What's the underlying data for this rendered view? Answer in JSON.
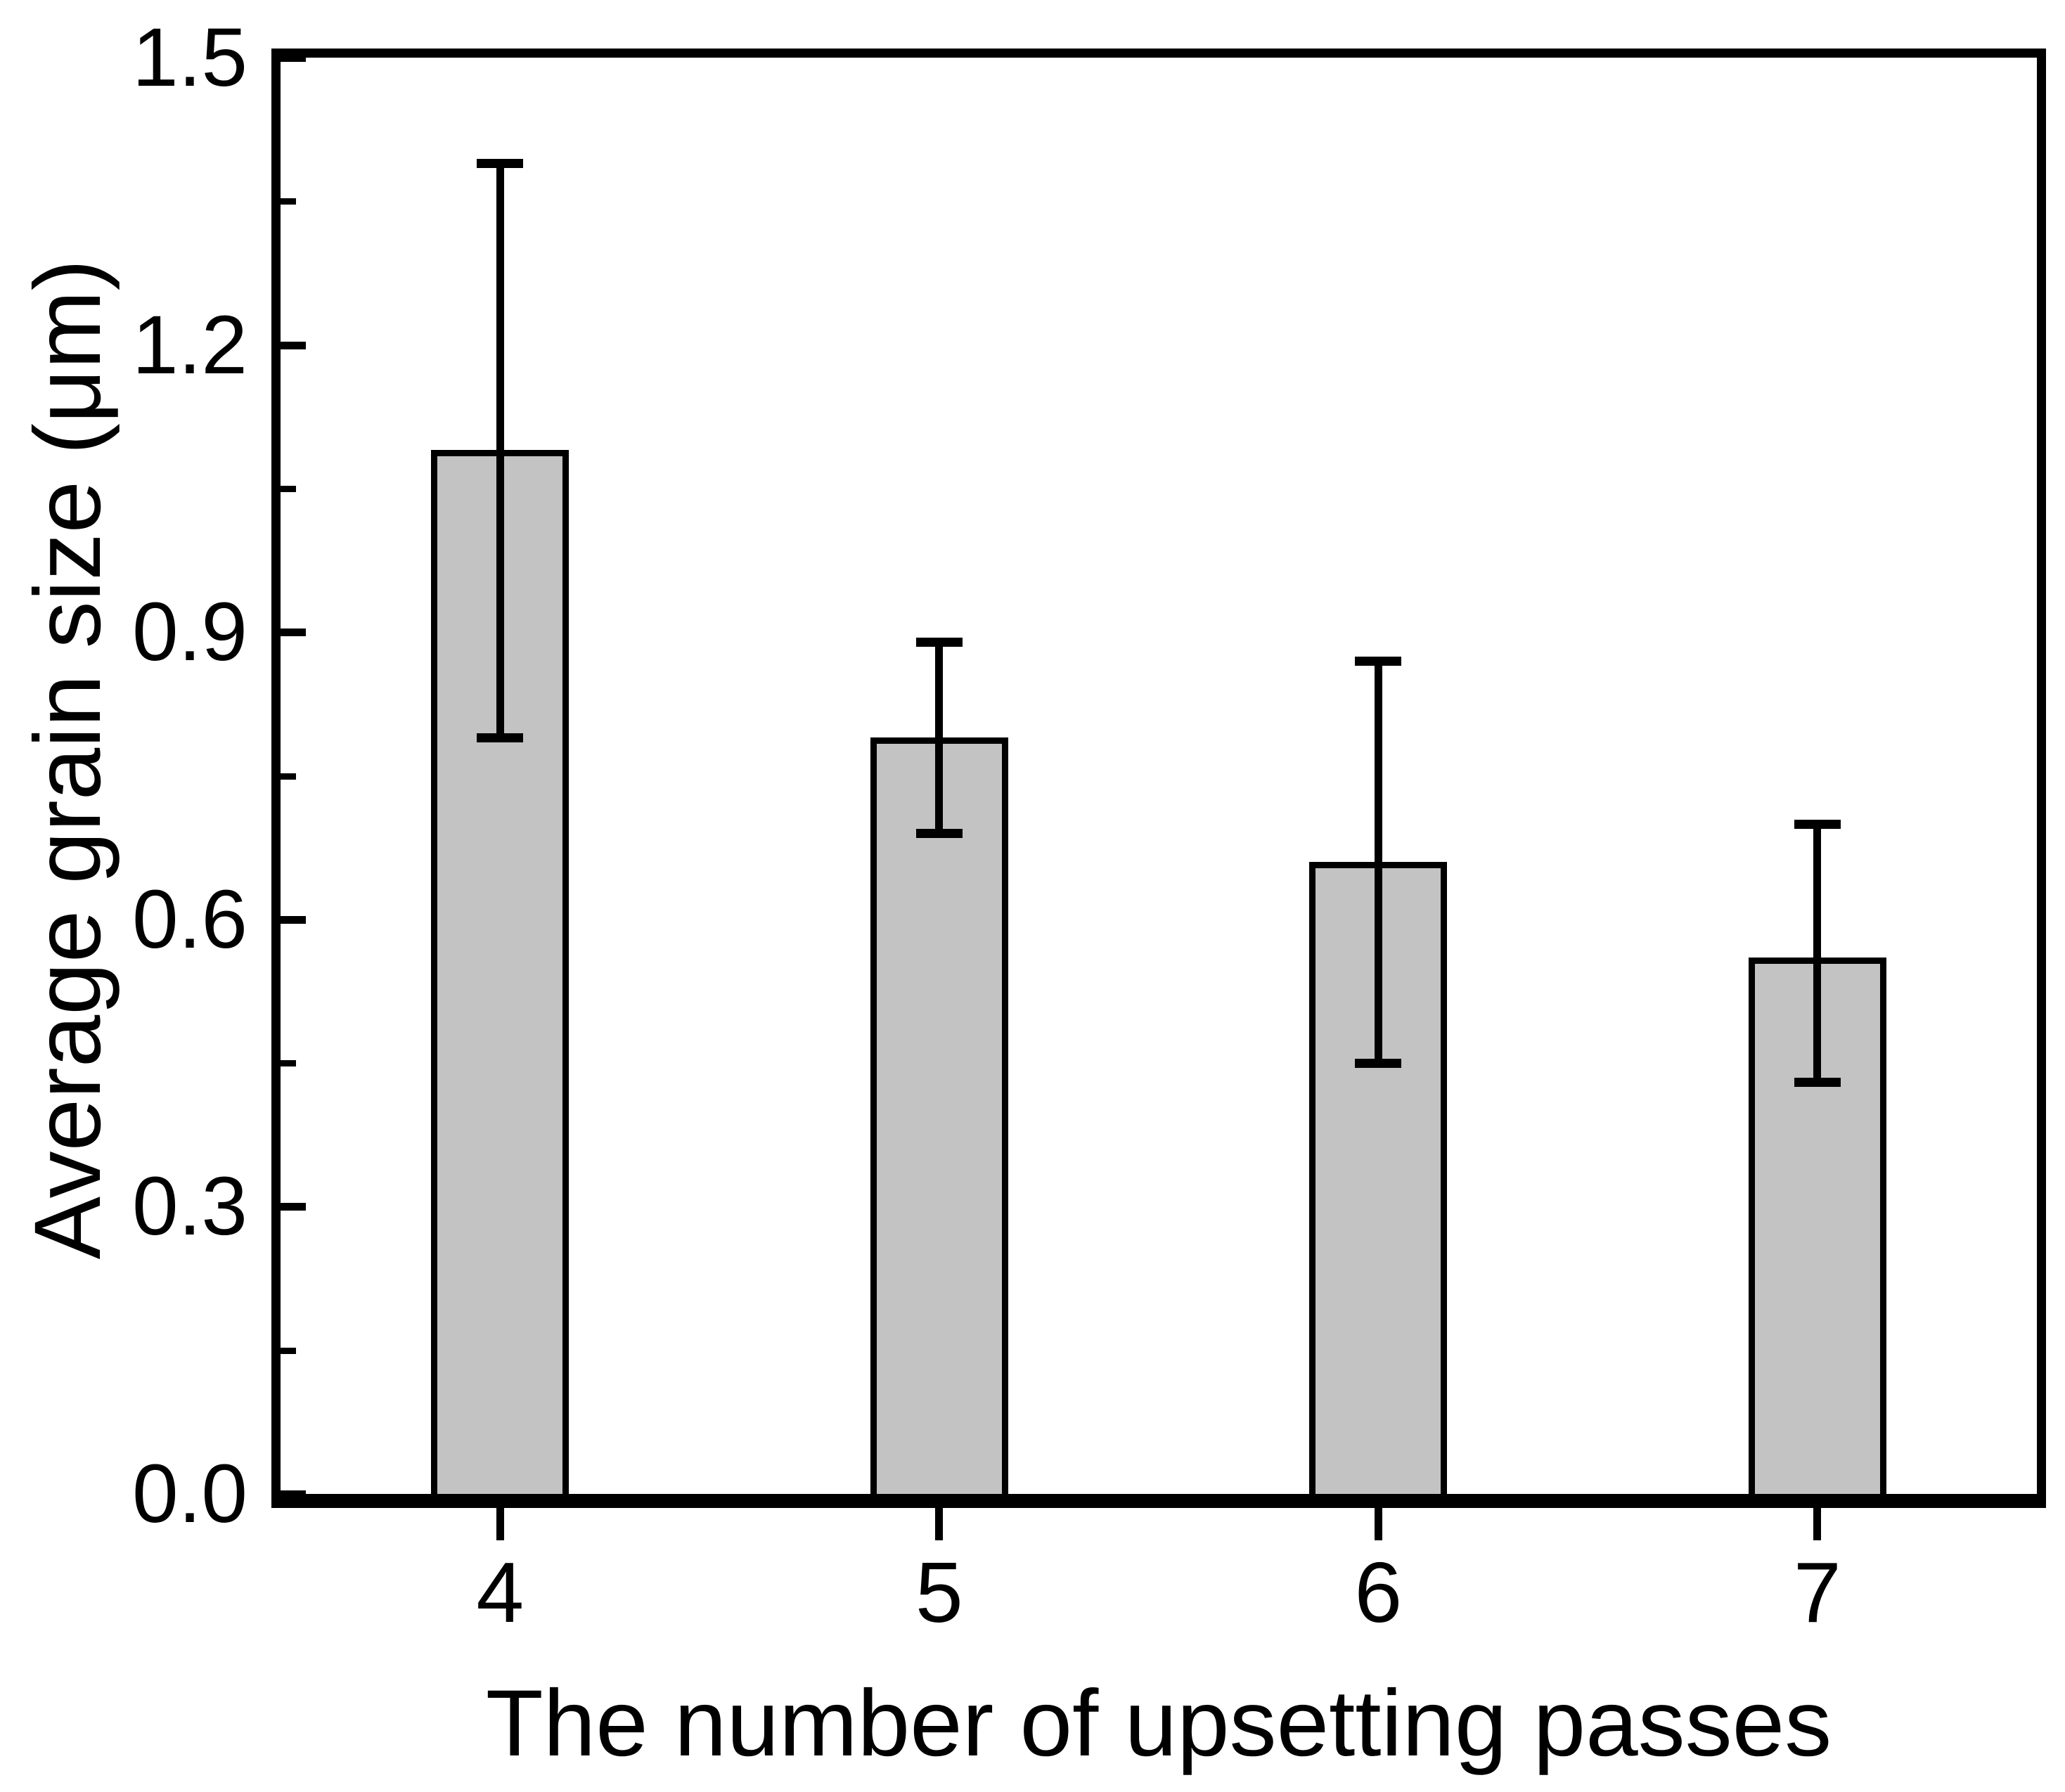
{
  "figure": {
    "background": "#ffffff",
    "frame_color": "#000000",
    "text_color": "#000000"
  },
  "chart_data": {
    "type": "bar",
    "title": "",
    "xlabel": "The number of upsetting passes",
    "ylabel": "Average grain size (μm)",
    "categories": [
      "4",
      "5",
      "6",
      "7"
    ],
    "values": [
      1.09,
      0.79,
      0.66,
      0.56
    ],
    "error_upper_ends": [
      1.39,
      0.89,
      0.87,
      0.7
    ],
    "error_lower_ends": [
      0.79,
      0.69,
      0.45,
      0.43
    ],
    "ylim": [
      0.0,
      1.5
    ],
    "ytick_labels": [
      "0.0",
      "0.3",
      "0.6",
      "0.9",
      "1.2",
      "1.5"
    ],
    "ytick_values": [
      0.0,
      0.3,
      0.6,
      0.9,
      1.2,
      1.5
    ],
    "minor_ytick_values": [
      0.15,
      0.45,
      0.75,
      1.05,
      1.35
    ],
    "grid": false,
    "legend": null,
    "bar_color": "#c3c3c3",
    "bar_edge_color": "#000000",
    "error_color": "#000000"
  }
}
